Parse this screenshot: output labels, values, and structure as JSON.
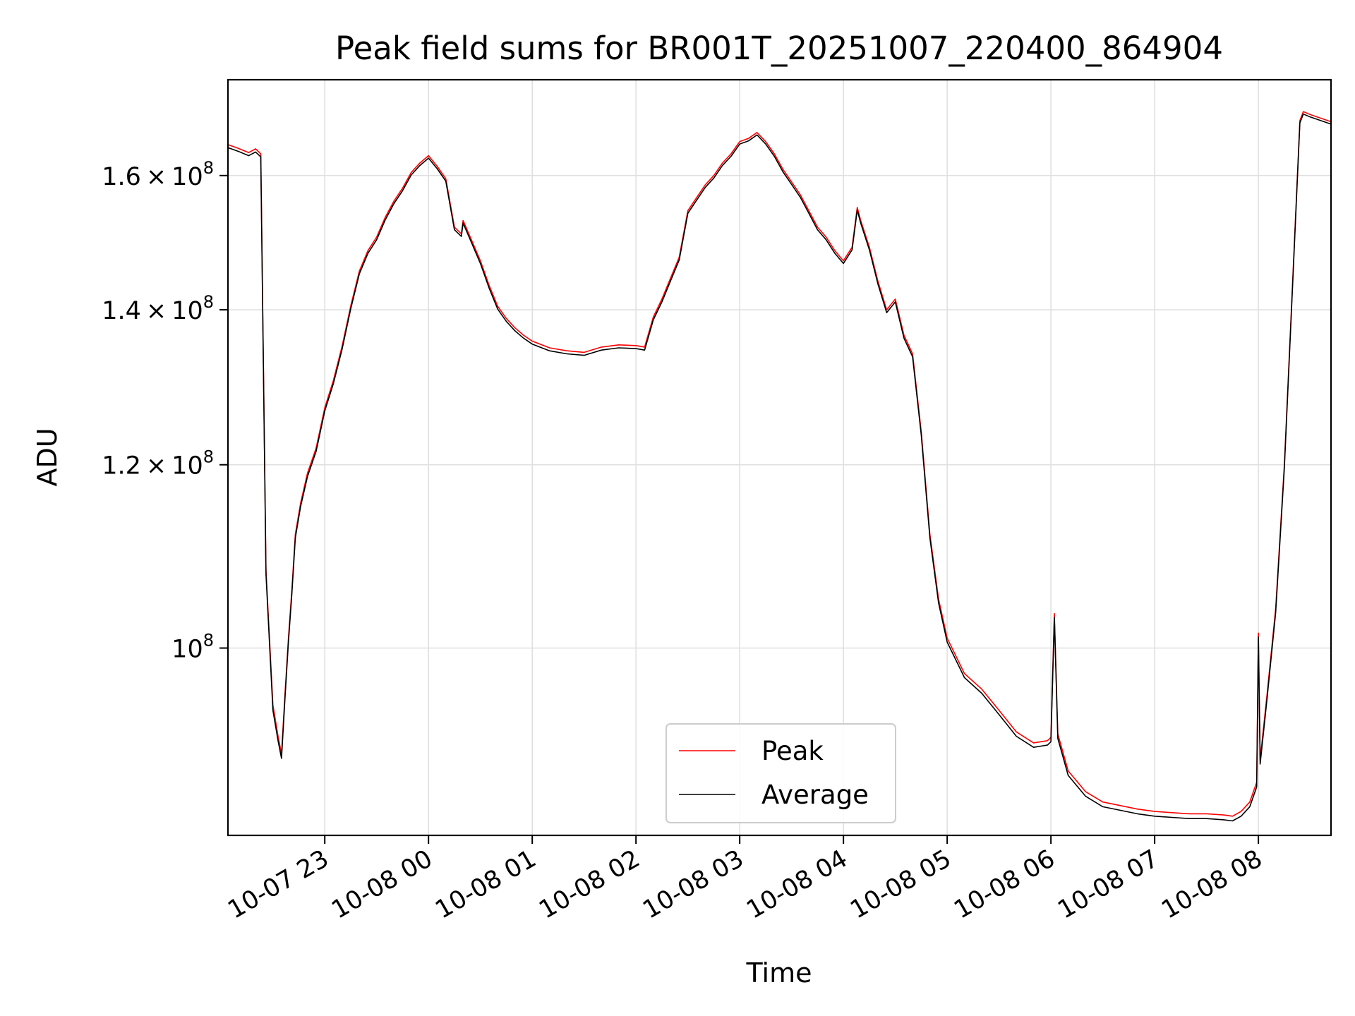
{
  "chart_data": {
    "type": "line",
    "title": "Peak field sums for BR001T_20251007_220400_864904",
    "xlabel": "Time",
    "ylabel": "ADU",
    "x_range": [
      "2025-10-07 22:04",
      "2025-10-08 08:42"
    ],
    "ylim": [
      83000000,
      176000000
    ],
    "y_scale": "log",
    "grid": true,
    "legend_position": "bottom-center",
    "x_ticks": [
      {
        "value": "2025-10-07 23:00",
        "label": "10-07 23"
      },
      {
        "value": "2025-10-08 00:00",
        "label": "10-08 00"
      },
      {
        "value": "2025-10-08 01:00",
        "label": "10-08 01"
      },
      {
        "value": "2025-10-08 02:00",
        "label": "10-08 02"
      },
      {
        "value": "2025-10-08 03:00",
        "label": "10-08 03"
      },
      {
        "value": "2025-10-08 04:00",
        "label": "10-08 04"
      },
      {
        "value": "2025-10-08 05:00",
        "label": "10-08 05"
      },
      {
        "value": "2025-10-08 06:00",
        "label": "10-08 06"
      },
      {
        "value": "2025-10-08 07:00",
        "label": "10-08 07"
      },
      {
        "value": "2025-10-08 08:00",
        "label": "10-08 08"
      }
    ],
    "y_ticks": [
      {
        "value": 100000000,
        "mantissa": "",
        "base": "10",
        "exp": "8"
      },
      {
        "value": 120000000,
        "mantissa": "1.2",
        "base": "10",
        "exp": "8"
      },
      {
        "value": 140000000,
        "mantissa": "1.4",
        "base": "10",
        "exp": "8"
      },
      {
        "value": 160000000,
        "mantissa": "1.6",
        "base": "10",
        "exp": "8"
      }
    ],
    "series": [
      {
        "name": "Peak",
        "color": "#ff0000",
        "x": [
          "2025-10-07 22:04",
          "2025-10-07 22:10",
          "2025-10-07 22:16",
          "2025-10-07 22:20",
          "2025-10-07 22:23",
          "2025-10-07 22:26",
          "2025-10-07 22:30",
          "2025-10-07 22:33",
          "2025-10-07 22:35",
          "2025-10-07 22:37",
          "2025-10-07 22:39",
          "2025-10-07 22:41",
          "2025-10-07 22:43",
          "2025-10-07 22:46",
          "2025-10-07 22:50",
          "2025-10-07 22:55",
          "2025-10-07 23:00",
          "2025-10-07 23:05",
          "2025-10-07 23:10",
          "2025-10-07 23:15",
          "2025-10-07 23:20",
          "2025-10-07 23:25",
          "2025-10-07 23:30",
          "2025-10-07 23:35",
          "2025-10-07 23:40",
          "2025-10-07 23:45",
          "2025-10-07 23:50",
          "2025-10-07 23:55",
          "2025-10-08 00:00",
          "2025-10-08 00:05",
          "2025-10-08 00:10",
          "2025-10-08 00:15",
          "2025-10-08 00:19",
          "2025-10-08 00:20",
          "2025-10-08 00:25",
          "2025-10-08 00:30",
          "2025-10-08 00:35",
          "2025-10-08 00:40",
          "2025-10-08 00:45",
          "2025-10-08 00:50",
          "2025-10-08 00:55",
          "2025-10-08 01:00",
          "2025-10-08 01:10",
          "2025-10-08 01:20",
          "2025-10-08 01:30",
          "2025-10-08 01:40",
          "2025-10-08 01:50",
          "2025-10-08 02:00",
          "2025-10-08 02:05",
          "2025-10-08 02:10",
          "2025-10-08 02:15",
          "2025-10-08 02:20",
          "2025-10-08 02:25",
          "2025-10-08 02:30",
          "2025-10-08 02:35",
          "2025-10-08 02:40",
          "2025-10-08 02:45",
          "2025-10-08 02:50",
          "2025-10-08 02:55",
          "2025-10-08 03:00",
          "2025-10-08 03:05",
          "2025-10-08 03:10",
          "2025-10-08 03:15",
          "2025-10-08 03:20",
          "2025-10-08 03:25",
          "2025-10-08 03:30",
          "2025-10-08 03:35",
          "2025-10-08 03:40",
          "2025-10-08 03:45",
          "2025-10-08 03:50",
          "2025-10-08 03:55",
          "2025-10-08 04:00",
          "2025-10-08 04:05",
          "2025-10-08 04:08",
          "2025-10-08 04:10",
          "2025-10-08 04:15",
          "2025-10-08 04:20",
          "2025-10-08 04:25",
          "2025-10-08 04:30",
          "2025-10-08 04:35",
          "2025-10-08 04:40",
          "2025-10-08 04:45",
          "2025-10-08 04:50",
          "2025-10-08 04:55",
          "2025-10-08 05:00",
          "2025-10-08 05:10",
          "2025-10-08 05:20",
          "2025-10-08 05:30",
          "2025-10-08 05:40",
          "2025-10-08 05:50",
          "2025-10-08 05:58",
          "2025-10-08 06:00",
          "2025-10-08 06:02",
          "2025-10-08 06:04",
          "2025-10-08 06:10",
          "2025-10-08 06:20",
          "2025-10-08 06:30",
          "2025-10-08 06:40",
          "2025-10-08 06:50",
          "2025-10-08 07:00",
          "2025-10-08 07:10",
          "2025-10-08 07:20",
          "2025-10-08 07:30",
          "2025-10-08 07:40",
          "2025-10-08 07:45",
          "2025-10-08 07:50",
          "2025-10-08 07:55",
          "2025-10-08 07:59",
          "2025-10-08 08:00",
          "2025-10-08 08:01",
          "2025-10-08 08:05",
          "2025-10-08 08:10",
          "2025-10-08 08:15",
          "2025-10-08 08:20",
          "2025-10-08 08:24",
          "2025-10-08 08:26",
          "2025-10-08 08:30",
          "2025-10-08 08:35",
          "2025-10-08 08:42"
        ],
        "values": [
          165000000,
          164400000,
          163700000,
          164300000,
          163500000,
          108000000,
          94500000,
          91600000,
          90000000,
          95500000,
          101000000,
          106000000,
          112000000,
          115500000,
          119000000,
          122000000,
          127000000,
          130500000,
          135000000,
          140500000,
          145500000,
          148500000,
          150500000,
          153500000,
          156000000,
          158000000,
          160500000,
          162000000,
          163200000,
          161500000,
          159500000,
          152000000,
          151000000,
          153000000,
          150000000,
          147000000,
          143500000,
          140500000,
          138800000,
          137500000,
          136500000,
          135700000,
          134800000,
          134400000,
          134200000,
          134900000,
          135200000,
          135100000,
          134900000,
          139000000,
          141500000,
          144500000,
          147500000,
          154500000,
          156500000,
          158500000,
          160000000,
          162000000,
          163500000,
          165500000,
          166000000,
          167000000,
          165500000,
          163500000,
          161000000,
          159000000,
          157000000,
          154500000,
          152000000,
          150500000,
          148500000,
          147000000,
          149000000,
          155000000,
          153000000,
          149000000,
          144000000,
          140000000,
          141500000,
          136500000,
          134000000,
          124000000,
          112000000,
          105000000,
          101000000,
          97500000,
          96000000,
          94000000,
          92000000,
          91000000,
          91200000,
          91500000,
          103500000,
          91800000,
          88500000,
          86700000,
          85800000,
          85500000,
          85200000,
          85000000,
          84900000,
          84800000,
          84800000,
          84700000,
          84600000,
          85000000,
          85800000,
          87500000,
          101500000,
          89500000,
          95500000,
          104000000,
          120000000,
          145000000,
          169000000,
          170500000,
          170000000,
          169500000,
          168800000
        ]
      },
      {
        "name": "Average",
        "color": "#000000",
        "x": [
          "2025-10-07 22:04",
          "2025-10-07 22:10",
          "2025-10-07 22:16",
          "2025-10-07 22:20",
          "2025-10-07 22:23",
          "2025-10-07 22:26",
          "2025-10-07 22:30",
          "2025-10-07 22:33",
          "2025-10-07 22:35",
          "2025-10-07 22:37",
          "2025-10-07 22:39",
          "2025-10-07 22:41",
          "2025-10-07 22:43",
          "2025-10-07 22:46",
          "2025-10-07 22:50",
          "2025-10-07 22:55",
          "2025-10-07 23:00",
          "2025-10-07 23:05",
          "2025-10-07 23:10",
          "2025-10-07 23:15",
          "2025-10-07 23:20",
          "2025-10-07 23:25",
          "2025-10-07 23:30",
          "2025-10-07 23:35",
          "2025-10-07 23:40",
          "2025-10-07 23:45",
          "2025-10-07 23:50",
          "2025-10-07 23:55",
          "2025-10-08 00:00",
          "2025-10-08 00:05",
          "2025-10-08 00:10",
          "2025-10-08 00:15",
          "2025-10-08 00:19",
          "2025-10-08 00:20",
          "2025-10-08 00:25",
          "2025-10-08 00:30",
          "2025-10-08 00:35",
          "2025-10-08 00:40",
          "2025-10-08 00:45",
          "2025-10-08 00:50",
          "2025-10-08 00:55",
          "2025-10-08 01:00",
          "2025-10-08 01:10",
          "2025-10-08 01:20",
          "2025-10-08 01:30",
          "2025-10-08 01:40",
          "2025-10-08 01:50",
          "2025-10-08 02:00",
          "2025-10-08 02:05",
          "2025-10-08 02:10",
          "2025-10-08 02:15",
          "2025-10-08 02:20",
          "2025-10-08 02:25",
          "2025-10-08 02:30",
          "2025-10-08 02:35",
          "2025-10-08 02:40",
          "2025-10-08 02:45",
          "2025-10-08 02:50",
          "2025-10-08 02:55",
          "2025-10-08 03:00",
          "2025-10-08 03:05",
          "2025-10-08 03:10",
          "2025-10-08 03:15",
          "2025-10-08 03:20",
          "2025-10-08 03:25",
          "2025-10-08 03:30",
          "2025-10-08 03:35",
          "2025-10-08 03:40",
          "2025-10-08 03:45",
          "2025-10-08 03:50",
          "2025-10-08 03:55",
          "2025-10-08 04:00",
          "2025-10-08 04:05",
          "2025-10-08 04:08",
          "2025-10-08 04:10",
          "2025-10-08 04:15",
          "2025-10-08 04:20",
          "2025-10-08 04:25",
          "2025-10-08 04:30",
          "2025-10-08 04:35",
          "2025-10-08 04:40",
          "2025-10-08 04:45",
          "2025-10-08 04:50",
          "2025-10-08 04:55",
          "2025-10-08 05:00",
          "2025-10-08 05:10",
          "2025-10-08 05:20",
          "2025-10-08 05:30",
          "2025-10-08 05:40",
          "2025-10-08 05:50",
          "2025-10-08 05:58",
          "2025-10-08 06:00",
          "2025-10-08 06:02",
          "2025-10-08 06:04",
          "2025-10-08 06:10",
          "2025-10-08 06:20",
          "2025-10-08 06:30",
          "2025-10-08 06:40",
          "2025-10-08 06:50",
          "2025-10-08 07:00",
          "2025-10-08 07:10",
          "2025-10-08 07:20",
          "2025-10-08 07:30",
          "2025-10-08 07:40",
          "2025-10-08 07:45",
          "2025-10-08 07:50",
          "2025-10-08 07:55",
          "2025-10-08 07:59",
          "2025-10-08 08:00",
          "2025-10-08 08:01",
          "2025-10-08 08:05",
          "2025-10-08 08:10",
          "2025-10-08 08:15",
          "2025-10-08 08:20",
          "2025-10-08 08:24",
          "2025-10-08 08:26",
          "2025-10-08 08:30",
          "2025-10-08 08:35",
          "2025-10-08 08:42"
        ],
        "values": [
          164500000,
          163900000,
          163200000,
          163800000,
          163000000,
          107600000,
          94000000,
          91200000,
          89600000,
          95100000,
          100600000,
          105600000,
          111600000,
          115100000,
          118600000,
          121600000,
          126600000,
          130100000,
          134600000,
          140100000,
          145100000,
          148100000,
          150100000,
          153100000,
          155600000,
          157600000,
          160100000,
          161600000,
          162800000,
          161100000,
          159100000,
          151600000,
          150600000,
          152600000,
          149600000,
          146600000,
          143100000,
          140100000,
          138400000,
          137100000,
          136100000,
          135300000,
          134400000,
          134000000,
          133800000,
          134500000,
          134800000,
          134700000,
          134500000,
          138600000,
          141100000,
          144100000,
          147100000,
          154100000,
          156100000,
          158100000,
          159600000,
          161600000,
          163100000,
          165100000,
          165600000,
          166600000,
          165100000,
          163100000,
          160600000,
          158600000,
          156600000,
          154100000,
          151600000,
          150100000,
          148100000,
          146600000,
          148600000,
          154600000,
          152600000,
          148600000,
          143600000,
          139600000,
          141100000,
          136100000,
          133600000,
          123600000,
          111600000,
          104600000,
          100600000,
          97100000,
          95600000,
          93600000,
          91600000,
          90600000,
          90800000,
          91100000,
          103100000,
          91400000,
          88100000,
          86300000,
          85400000,
          85100000,
          84800000,
          84600000,
          84500000,
          84400000,
          84400000,
          84300000,
          84200000,
          84600000,
          85400000,
          87100000,
          101100000,
          89100000,
          95100000,
          103600000,
          119600000,
          144600000,
          168600000,
          170100000,
          169600000,
          169100000,
          168400000
        ]
      }
    ]
  }
}
